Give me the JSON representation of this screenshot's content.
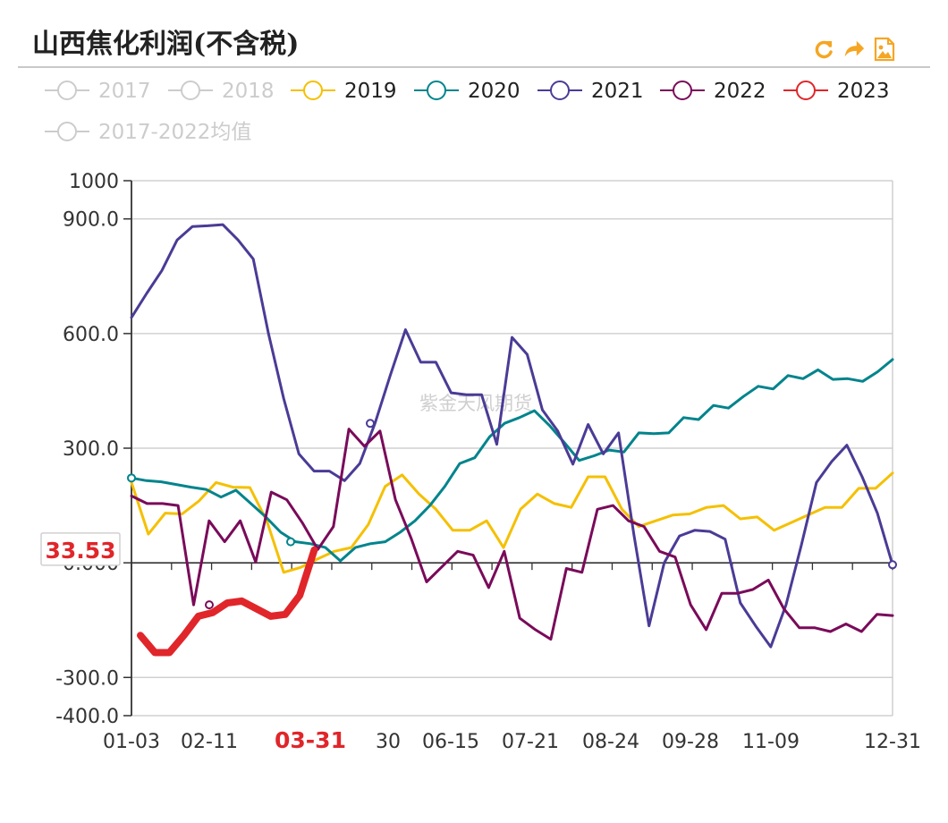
{
  "header": {
    "title": "山西焦化利润(不含税)",
    "toolbar": [
      {
        "name": "refresh-icon",
        "color": "#f5a623"
      },
      {
        "name": "share-icon",
        "color": "#f5a623"
      },
      {
        "name": "save-image-icon",
        "color": "#f5a623"
      }
    ]
  },
  "watermark": "紫金天风期货",
  "highlight_label": "33.53",
  "chart_data": {
    "type": "line",
    "title": "山西焦化利润(不含税)",
    "x_ticks": [
      "01-03",
      "02-11",
      "03-31",
      "30",
      "06-15",
      "07-21",
      "08-24",
      "09-28",
      "11-09",
      "12-31"
    ],
    "highlight_x_tick": "03-31",
    "y_ticks": [
      "1000",
      "900.0",
      "600.0",
      "300.0",
      "0.000",
      "-300.0",
      "-400.0"
    ],
    "ylim": [
      -400,
      1000
    ],
    "grid": true,
    "legend_position": "top",
    "series": [
      {
        "name": "2017",
        "color": "#cccccc",
        "legend_active": false,
        "line_width": 3,
        "values": []
      },
      {
        "name": "2018",
        "color": "#cccccc",
        "legend_active": false,
        "line_width": 3,
        "values": []
      },
      {
        "name": "2019",
        "color": "#f5c000",
        "legend_active": true,
        "line_width": 3,
        "values": [
          210,
          75,
          130,
          128,
          162,
          210,
          198,
          197,
          110,
          -25,
          -12,
          10,
          30,
          40,
          100,
          200,
          230,
          180,
          140,
          85,
          85,
          110,
          40,
          140,
          180,
          155,
          145,
          225,
          225,
          140,
          95,
          110,
          125,
          128,
          145,
          150,
          115,
          120,
          85,
          105,
          125,
          145,
          145,
          195,
          195,
          235
        ]
      },
      {
        "name": "2020",
        "color": "#00848c",
        "legend_active": true,
        "line_width": 3,
        "values": [
          222,
          215,
          212,
          205,
          198,
          192,
          172,
          190,
          155,
          120,
          80,
          55,
          50,
          40,
          5,
          40,
          50,
          55,
          80,
          110,
          150,
          200,
          260,
          275,
          330,
          365,
          380,
          398,
          360,
          315,
          268,
          280,
          295,
          290,
          340,
          338,
          340,
          380,
          375,
          412,
          405,
          435,
          462,
          455,
          490,
          482,
          505,
          480,
          482,
          475,
          500,
          532
        ]
      },
      {
        "name": "2021",
        "color": "#4b3b96",
        "legend_active": true,
        "line_width": 3,
        "values": [
          642,
          705,
          765,
          845,
          880,
          882,
          885,
          845,
          795,
          600,
          430,
          285,
          240,
          240,
          215,
          260,
          365,
          490,
          610,
          525,
          525,
          445,
          440,
          440,
          310,
          590,
          545,
          400,
          345,
          258,
          362,
          285,
          340,
          75,
          -165,
          0,
          70,
          85,
          82,
          62,
          -105,
          -165,
          -220,
          -110,
          45,
          210,
          265,
          308,
          225,
          130,
          -5
        ]
      },
      {
        "name": "2022",
        "color": "#7a0a5a",
        "legend_active": true,
        "line_width": 3,
        "values": [
          175,
          155,
          155,
          150,
          -110,
          110,
          55,
          110,
          2,
          185,
          165,
          105,
          35,
          95,
          350,
          305,
          345,
          165,
          65,
          -50,
          -10,
          30,
          20,
          -65,
          30,
          -145,
          -175,
          -200,
          -15,
          -25,
          140,
          150,
          110,
          95,
          30,
          15,
          -110,
          -175,
          -80,
          -80,
          -70,
          -45,
          -120,
          -170,
          -170,
          -180,
          -160,
          -180,
          -135,
          -138
        ]
      },
      {
        "name": "2023",
        "color": "#e0262a",
        "legend_active": true,
        "line_width": 8,
        "values": [
          -190,
          -235,
          -235,
          -190,
          -140,
          -130,
          -105,
          -100,
          -120,
          -140,
          -135,
          -85,
          33.53
        ]
      },
      {
        "name": "2017-2022均值",
        "color": "#cccccc",
        "legend_active": false,
        "line_width": 3,
        "values": []
      }
    ]
  }
}
